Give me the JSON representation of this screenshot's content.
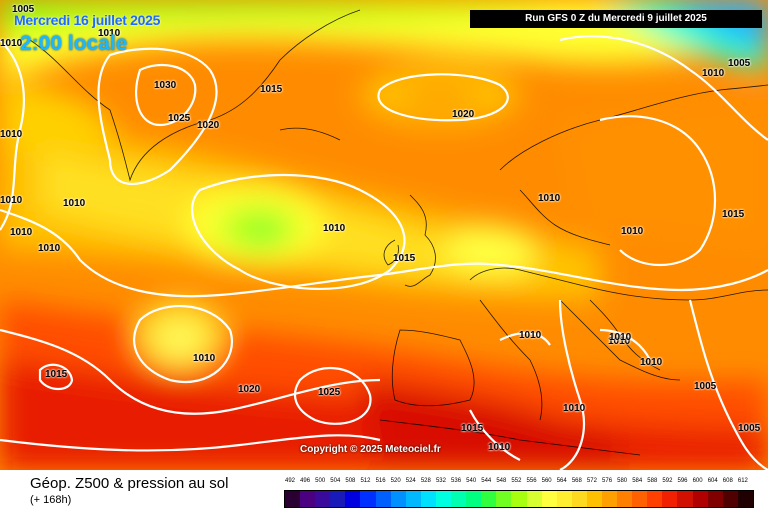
{
  "header": {
    "date": "Mercredi 16 juillet 2025",
    "local_time": "2:00 locale",
    "run": "Run GFS 0 Z du Mercredi 9 juillet 2025"
  },
  "copyright": "Copyright © 2025 Meteociel.fr",
  "footer": {
    "title": "Géop. Z500 & pression au sol",
    "subtitle": "(+ 168h)"
  },
  "legend": {
    "values": [
      "492",
      "496",
      "500",
      "504",
      "508",
      "512",
      "516",
      "520",
      "524",
      "528",
      "532",
      "536",
      "540",
      "544",
      "548",
      "552",
      "556",
      "560",
      "564",
      "568",
      "572",
      "576",
      "580",
      "584",
      "588",
      "592",
      "596",
      "600",
      "604",
      "608",
      "612"
    ],
    "colors": [
      "#2a0033",
      "#4b0082",
      "#3a0a9c",
      "#1a1ab8",
      "#0000e0",
      "#0030ff",
      "#0060ff",
      "#0090ff",
      "#00b8ff",
      "#00e0ff",
      "#00ffe0",
      "#00ffb0",
      "#00ff80",
      "#30ff40",
      "#70ff20",
      "#a8ff10",
      "#d8ff30",
      "#ffff40",
      "#ffef30",
      "#ffd820",
      "#ffc000",
      "#ffa000",
      "#ff8000",
      "#ff6000",
      "#ff4000",
      "#f02000",
      "#d01000",
      "#b00000",
      "#800000",
      "#500000",
      "#200000"
    ]
  },
  "isobars": [
    {
      "label": "1005"
    },
    {
      "label": "1010"
    },
    {
      "label": "1010"
    },
    {
      "label": "1030"
    },
    {
      "label": "1025"
    },
    {
      "label": "1020"
    },
    {
      "label": "1015"
    },
    {
      "label": "1020"
    },
    {
      "label": "1010"
    },
    {
      "label": "1005"
    },
    {
      "label": "1010"
    },
    {
      "label": "1010"
    },
    {
      "label": "1010"
    },
    {
      "label": "1010"
    },
    {
      "label": "1010"
    },
    {
      "label": "1010"
    },
    {
      "label": "1015"
    },
    {
      "label": "1010"
    },
    {
      "label": "1010"
    },
    {
      "label": "1015"
    },
    {
      "label": "1010"
    },
    {
      "label": "1015"
    },
    {
      "label": "1020"
    },
    {
      "label": "1025"
    },
    {
      "label": "1010"
    },
    {
      "label": "1010"
    },
    {
      "label": "1010"
    },
    {
      "label": "1010"
    },
    {
      "label": "1005"
    },
    {
      "label": "1010"
    },
    {
      "label": "1015"
    },
    {
      "label": "1010"
    },
    {
      "label": "1005"
    }
  ]
}
